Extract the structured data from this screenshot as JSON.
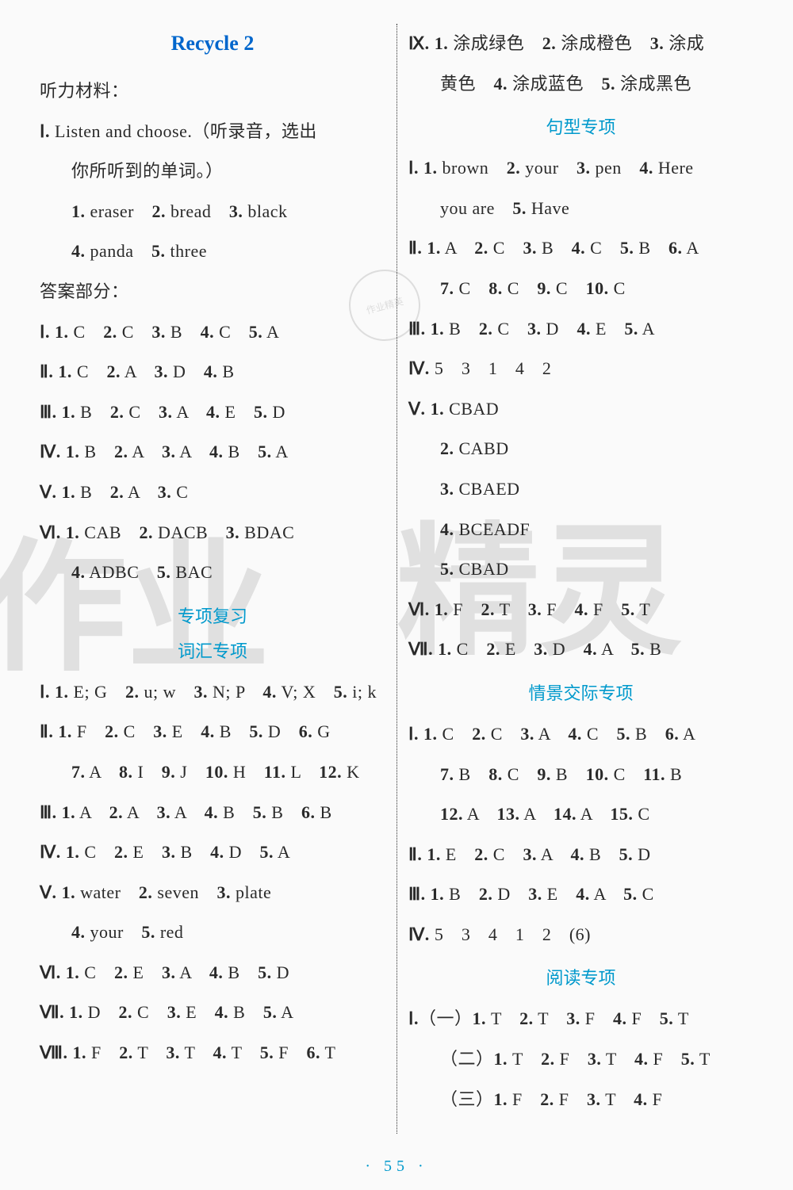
{
  "pageNumber": "· 55 ·",
  "watermarks": {
    "wm1": "作业",
    "wm2": "精灵"
  },
  "stamp": "作业精英",
  "left": {
    "title": "Recycle 2",
    "lines": [
      {
        "t": "听力材料：",
        "i": 0
      },
      {
        "t": "Ⅰ. Listen and choose.（听录音，选出",
        "i": 0
      },
      {
        "t": "你所听到的单词。）",
        "i": 1
      },
      {
        "t": "1. eraser　2. bread　3. black",
        "i": 1,
        "b": 1
      },
      {
        "t": "4. panda　5. three",
        "i": 1,
        "b": 1
      },
      {
        "t": "答案部分：",
        "i": 0
      },
      {
        "t": "Ⅰ. 1. C　2. C　3. B　4. C　5. A",
        "i": 0,
        "b": 1
      },
      {
        "t": "Ⅱ. 1. C　2. A　3. D　4. B",
        "i": 0,
        "b": 1
      },
      {
        "t": "Ⅲ. 1. B　2. C　3. A　4. E　5. D",
        "i": 0,
        "b": 1
      },
      {
        "t": "Ⅳ. 1. B　2. A　3. A　4. B　5. A",
        "i": 0,
        "b": 1
      },
      {
        "t": "Ⅴ. 1. B　2. A　3. C",
        "i": 0,
        "b": 1
      },
      {
        "t": "Ⅵ. 1. CAB　2. DACB　3. BDAC",
        "i": 0,
        "b": 1
      },
      {
        "t": "4. ADBC　5. BAC",
        "i": 1,
        "b": 1
      }
    ],
    "section1": "专项复习",
    "section2": "词汇专项",
    "lines2": [
      {
        "t": "Ⅰ. 1. E; G　2. u; w　3. N; P　4. V; X　5. i; k",
        "i": 0,
        "b": 1
      },
      {
        "t": "Ⅱ. 1. F　2. C　3. E　4. B　5. D　6. G",
        "i": 0,
        "b": 1
      },
      {
        "t": "7. A　8. I　9. J　10. H　11. L　12. K",
        "i": 1,
        "b": 1
      },
      {
        "t": "Ⅲ. 1. A　2. A　3. A　4. B　5. B　6. B",
        "i": 0,
        "b": 1
      },
      {
        "t": "Ⅳ. 1. C　2. E　3. B　4. D　5. A",
        "i": 0,
        "b": 1
      },
      {
        "t": "Ⅴ. 1. water　2. seven　3. plate",
        "i": 0,
        "b": 1
      },
      {
        "t": "4. your　5. red",
        "i": 1,
        "b": 1
      },
      {
        "t": "Ⅵ. 1. C　2. E　3. A　4. B　5. D",
        "i": 0,
        "b": 1
      },
      {
        "t": "Ⅶ. 1. D　2. C　3. E　4. B　5. A",
        "i": 0,
        "b": 1
      },
      {
        "t": "Ⅷ. 1. F　2. T　3. T　4. T　5. F　6. T",
        "i": 0,
        "b": 1
      }
    ]
  },
  "right": {
    "lines1": [
      {
        "t": "Ⅸ. 1. 涂成绿色　2. 涂成橙色　3. 涂成",
        "i": 0,
        "b": 1
      },
      {
        "t": "黄色　4. 涂成蓝色　5. 涂成黑色",
        "i": 1,
        "b": 1
      }
    ],
    "section1": "句型专项",
    "lines2": [
      {
        "t": "Ⅰ. 1. brown　2. your　3. pen　4. Here",
        "i": 0,
        "b": 1
      },
      {
        "t": "you are　5. Have",
        "i": 1,
        "b": 1
      },
      {
        "t": "Ⅱ. 1. A　2. C　3. B　4. C　5. B　6. A",
        "i": 0,
        "b": 1
      },
      {
        "t": "7. C　8. C　9. C　10. C",
        "i": 1,
        "b": 1
      },
      {
        "t": "Ⅲ. 1. B　2. C　3. D　4. E　5. A",
        "i": 0,
        "b": 1
      },
      {
        "t": "Ⅳ. 5　3　1　4　2",
        "i": 0,
        "b": 1
      },
      {
        "t": "Ⅴ. 1. CBAD",
        "i": 0,
        "b": 1
      },
      {
        "t": "2. CABD",
        "i": 1,
        "b": 1
      },
      {
        "t": "3. CBAED",
        "i": 1,
        "b": 1
      },
      {
        "t": "4. BCEADF",
        "i": 1,
        "b": 1
      },
      {
        "t": "5. CBAD",
        "i": 1,
        "b": 1
      },
      {
        "t": "Ⅵ. 1. F　2. T　3. F　4. F　5. T",
        "i": 0,
        "b": 1
      },
      {
        "t": "Ⅶ. 1. C　2. E　3. D　4. A　5. B",
        "i": 0,
        "b": 1
      }
    ],
    "section2": "情景交际专项",
    "lines3": [
      {
        "t": "Ⅰ. 1. C　2. C　3. A　4. C　5. B　6. A",
        "i": 0,
        "b": 1
      },
      {
        "t": "7. B　8. C　9. B　10. C　11. B",
        "i": 1,
        "b": 1
      },
      {
        "t": "12. A　13. A　14. A　15. C",
        "i": 1,
        "b": 1
      },
      {
        "t": "Ⅱ. 1. E　2. C　3. A　4. B　5. D",
        "i": 0,
        "b": 1
      },
      {
        "t": "Ⅲ. 1. B　2. D　3. E　4. A　5. C",
        "i": 0,
        "b": 1
      },
      {
        "t": "Ⅳ. 5　3　4　1　2　(6)",
        "i": 0,
        "b": 1
      }
    ],
    "section3": "阅读专项",
    "lines4": [
      {
        "t": "Ⅰ.（一）1. T　2. T　3. F　4. F　5. T",
        "i": 0,
        "b": 1
      },
      {
        "t": "（二）1. T　2. F　3. T　4. F　5. T",
        "i": 1,
        "b": 1
      },
      {
        "t": "（三）1. F　2. F　3. T　4. F",
        "i": 1,
        "b": 1
      }
    ]
  }
}
